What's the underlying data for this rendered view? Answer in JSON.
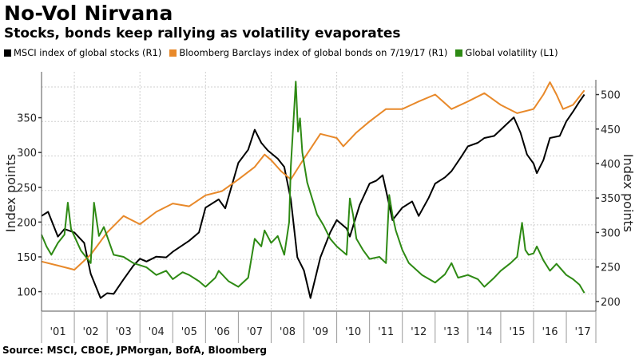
{
  "header": {
    "title": "No-Vol Nirvana",
    "subtitle": "Stocks, bonds keep rallying as volatility evaporates"
  },
  "legend": [
    {
      "label": "MSCI index of global stocks (R1)",
      "color": "#000000"
    },
    {
      "label": "Bloomberg Barclays index of global bonds on 7/19/17 (R1)",
      "color": "#e8892a"
    },
    {
      "label": "Global volatility (L1)",
      "color": "#2e8a14"
    }
  ],
  "footer": {
    "source": "Source: MSCI, CBOE, JPMorgan, BofA, Bloomberg"
  },
  "chart_data": {
    "type": "line",
    "title": "No-Vol Nirvana",
    "subtitle": "Stocks, bonds keep rallying as volatility evaporates",
    "xlabel": "",
    "x_ticks": [
      "'01",
      "'02",
      "'03",
      "'04",
      "'05",
      "'06",
      "'07",
      "'08",
      "'09",
      "'10",
      "'11",
      "'12",
      "'13",
      "'14",
      "'15",
      "'16",
      "'17"
    ],
    "xlim": [
      2001.0,
      2017.9
    ],
    "left_axis": {
      "label": "Index points",
      "ticks": [
        100,
        150,
        200,
        250,
        300,
        350
      ],
      "ylim": [
        72,
        416
      ]
    },
    "right_axis": {
      "label": "Index points",
      "ticks": [
        200,
        250,
        300,
        350,
        400,
        450,
        500
      ],
      "ylim": [
        186,
        533
      ]
    },
    "grid": true,
    "legend_position": "top-left",
    "series": [
      {
        "name": "MSCI index of global stocks (R1)",
        "axis": "right",
        "color": "#000000",
        "points": [
          [
            2001.0,
            324
          ],
          [
            2001.2,
            330
          ],
          [
            2001.5,
            294
          ],
          [
            2001.7,
            305
          ],
          [
            2002.0,
            300
          ],
          [
            2002.3,
            285
          ],
          [
            2002.5,
            240
          ],
          [
            2002.8,
            205
          ],
          [
            2003.0,
            212
          ],
          [
            2003.2,
            211
          ],
          [
            2003.5,
            232
          ],
          [
            2003.8,
            252
          ],
          [
            2004.0,
            262
          ],
          [
            2004.2,
            258
          ],
          [
            2004.5,
            265
          ],
          [
            2004.8,
            264
          ],
          [
            2005.0,
            272
          ],
          [
            2005.5,
            288
          ],
          [
            2005.8,
            300
          ],
          [
            2006.0,
            336
          ],
          [
            2006.4,
            348
          ],
          [
            2006.6,
            335
          ],
          [
            2007.0,
            401
          ],
          [
            2007.3,
            420
          ],
          [
            2007.5,
            449
          ],
          [
            2007.7,
            430
          ],
          [
            2007.9,
            419
          ],
          [
            2008.2,
            407
          ],
          [
            2008.4,
            395
          ],
          [
            2008.6,
            348
          ],
          [
            2008.8,
            264
          ],
          [
            2009.0,
            245
          ],
          [
            2009.2,
            205
          ],
          [
            2009.5,
            264
          ],
          [
            2009.8,
            300
          ],
          [
            2010.0,
            318
          ],
          [
            2010.3,
            306
          ],
          [
            2010.4,
            294
          ],
          [
            2010.7,
            340
          ],
          [
            2011.0,
            371
          ],
          [
            2011.2,
            375
          ],
          [
            2011.4,
            383
          ],
          [
            2011.6,
            340
          ],
          [
            2011.7,
            318
          ],
          [
            2012.0,
            336
          ],
          [
            2012.3,
            345
          ],
          [
            2012.5,
            324
          ],
          [
            2012.8,
            350
          ],
          [
            2013.0,
            371
          ],
          [
            2013.3,
            380
          ],
          [
            2013.5,
            389
          ],
          [
            2013.8,
            410
          ],
          [
            2014.0,
            425
          ],
          [
            2014.3,
            430
          ],
          [
            2014.5,
            437
          ],
          [
            2014.8,
            440
          ],
          [
            2015.0,
            449
          ],
          [
            2015.4,
            467
          ],
          [
            2015.6,
            445
          ],
          [
            2015.8,
            413
          ],
          [
            2016.0,
            400
          ],
          [
            2016.1,
            386
          ],
          [
            2016.3,
            405
          ],
          [
            2016.5,
            437
          ],
          [
            2016.8,
            440
          ],
          [
            2017.0,
            461
          ],
          [
            2017.2,
            475
          ],
          [
            2017.4,
            490
          ],
          [
            2017.55,
            500
          ]
        ]
      },
      {
        "name": "Bloomberg Barclays index of global bonds on 7/19/17 (R1)",
        "axis": "right",
        "color": "#e8892a",
        "points": [
          [
            2001.0,
            258
          ],
          [
            2001.5,
            252
          ],
          [
            2002.0,
            246
          ],
          [
            2002.5,
            268
          ],
          [
            2003.0,
            300
          ],
          [
            2003.5,
            324
          ],
          [
            2004.0,
            312
          ],
          [
            2004.5,
            330
          ],
          [
            2005.0,
            342
          ],
          [
            2005.5,
            338
          ],
          [
            2006.0,
            354
          ],
          [
            2006.5,
            360
          ],
          [
            2007.0,
            377
          ],
          [
            2007.5,
            395
          ],
          [
            2007.8,
            413
          ],
          [
            2008.0,
            405
          ],
          [
            2008.3,
            389
          ],
          [
            2008.6,
            377
          ],
          [
            2009.0,
            407
          ],
          [
            2009.5,
            443
          ],
          [
            2010.0,
            437
          ],
          [
            2010.2,
            425
          ],
          [
            2010.6,
            445
          ],
          [
            2011.0,
            461
          ],
          [
            2011.5,
            479
          ],
          [
            2012.0,
            479
          ],
          [
            2012.5,
            490
          ],
          [
            2013.0,
            500
          ],
          [
            2013.5,
            479
          ],
          [
            2014.0,
            490
          ],
          [
            2014.5,
            502
          ],
          [
            2015.0,
            485
          ],
          [
            2015.5,
            473
          ],
          [
            2016.0,
            479
          ],
          [
            2016.3,
            500
          ],
          [
            2016.5,
            518
          ],
          [
            2016.7,
            500
          ],
          [
            2016.9,
            479
          ],
          [
            2017.2,
            485
          ],
          [
            2017.55,
            506
          ]
        ]
      },
      {
        "name": "Global volatility (L1)",
        "axis": "left",
        "color": "#2e8a14",
        "points": [
          [
            2001.0,
            182
          ],
          [
            2001.15,
            165
          ],
          [
            2001.3,
            153
          ],
          [
            2001.5,
            170
          ],
          [
            2001.7,
            182
          ],
          [
            2001.8,
            228
          ],
          [
            2001.9,
            190
          ],
          [
            2002.2,
            159
          ],
          [
            2002.5,
            141
          ],
          [
            2002.6,
            228
          ],
          [
            2002.75,
            180
          ],
          [
            2002.9,
            193
          ],
          [
            2003.2,
            153
          ],
          [
            2003.5,
            150
          ],
          [
            2003.8,
            141
          ],
          [
            2004.2,
            135
          ],
          [
            2004.5,
            124
          ],
          [
            2004.8,
            130
          ],
          [
            2005.0,
            118
          ],
          [
            2005.3,
            128
          ],
          [
            2005.5,
            124
          ],
          [
            2005.8,
            115
          ],
          [
            2006.0,
            107
          ],
          [
            2006.3,
            120
          ],
          [
            2006.4,
            130
          ],
          [
            2006.7,
            115
          ],
          [
            2007.0,
            107
          ],
          [
            2007.3,
            120
          ],
          [
            2007.5,
            176
          ],
          [
            2007.7,
            165
          ],
          [
            2007.8,
            188
          ],
          [
            2008.0,
            170
          ],
          [
            2008.2,
            180
          ],
          [
            2008.4,
            153
          ],
          [
            2008.55,
            200
          ],
          [
            2008.6,
            280
          ],
          [
            2008.7,
            360
          ],
          [
            2008.75,
            402
          ],
          [
            2008.82,
            330
          ],
          [
            2008.88,
            349
          ],
          [
            2008.95,
            300
          ],
          [
            2009.1,
            257
          ],
          [
            2009.4,
            211
          ],
          [
            2009.6,
            195
          ],
          [
            2009.8,
            176
          ],
          [
            2010.0,
            165
          ],
          [
            2010.3,
            153
          ],
          [
            2010.4,
            234
          ],
          [
            2010.5,
            210
          ],
          [
            2010.6,
            176
          ],
          [
            2010.8,
            160
          ],
          [
            2011.0,
            147
          ],
          [
            2011.3,
            150
          ],
          [
            2011.5,
            141
          ],
          [
            2011.6,
            239
          ],
          [
            2011.7,
            210
          ],
          [
            2011.8,
            188
          ],
          [
            2012.0,
            160
          ],
          [
            2012.2,
            141
          ],
          [
            2012.6,
            124
          ],
          [
            2013.0,
            113
          ],
          [
            2013.3,
            125
          ],
          [
            2013.5,
            141
          ],
          [
            2013.7,
            120
          ],
          [
            2014.0,
            124
          ],
          [
            2014.3,
            118
          ],
          [
            2014.5,
            107
          ],
          [
            2014.8,
            120
          ],
          [
            2015.0,
            130
          ],
          [
            2015.3,
            141
          ],
          [
            2015.5,
            150
          ],
          [
            2015.65,
            199
          ],
          [
            2015.75,
            160
          ],
          [
            2015.85,
            153
          ],
          [
            2016.0,
            155
          ],
          [
            2016.1,
            165
          ],
          [
            2016.3,
            145
          ],
          [
            2016.5,
            130
          ],
          [
            2016.7,
            140
          ],
          [
            2017.0,
            124
          ],
          [
            2017.2,
            118
          ],
          [
            2017.4,
            110
          ],
          [
            2017.55,
            98
          ]
        ]
      }
    ]
  }
}
